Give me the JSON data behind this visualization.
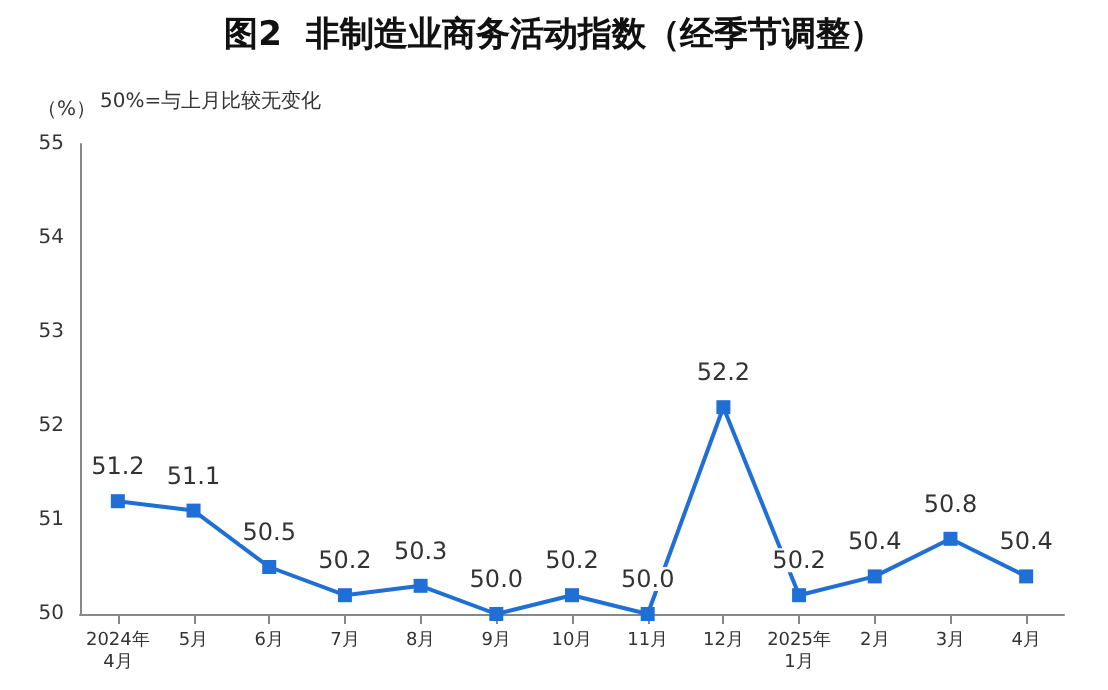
{
  "chart_data": {
    "type": "line",
    "title": "图2  非制造业商务活动指数（经季节调整）",
    "ylabel": "（%）",
    "annotations": [
      "50%=与上月比较无变化"
    ],
    "categories": [
      "2024年\n4月",
      "5月",
      "6月",
      "7月",
      "8月",
      "9月",
      "10月",
      "11月",
      "12月",
      "2025年\n1月",
      "2月",
      "3月",
      "4月"
    ],
    "series": [
      {
        "color": "#1f6fd6",
        "values": [
          51.2,
          51.1,
          50.5,
          50.2,
          50.3,
          50.0,
          50.2,
          50.0,
          52.2,
          50.2,
          50.4,
          50.8,
          50.4
        ],
        "value_labels": [
          "51.2",
          "51.1",
          "50.5",
          "50.2",
          "50.3",
          "50.0",
          "50.2",
          "50.0",
          "52.2",
          "50.2",
          "50.4",
          "50.8",
          "50.4"
        ]
      }
    ],
    "ylim": [
      50,
      55
    ],
    "yticks": [
      50,
      51,
      52,
      53,
      54,
      55
    ],
    "grid": false,
    "marker": "square",
    "line_style": "solid"
  }
}
